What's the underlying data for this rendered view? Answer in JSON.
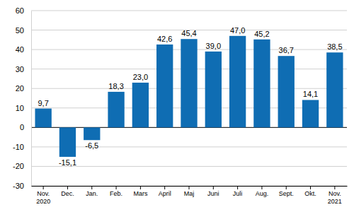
{
  "chart_data": {
    "type": "bar",
    "categories": [
      "Nov.\n2020",
      "Dec.",
      "Jan.",
      "Feb.",
      "Mars",
      "April",
      "Maj",
      "Juni",
      "Juli",
      "Aug.",
      "Sept.",
      "Okt.",
      "Nov.\n2021"
    ],
    "values": [
      9.7,
      -15.1,
      -6.5,
      18.3,
      23.0,
      42.6,
      45.4,
      39.0,
      47.0,
      45.2,
      36.7,
      14.1,
      38.5
    ],
    "value_labels": [
      "9,7",
      "-15,1",
      "-6,5",
      "18,3",
      "23,0",
      "42,6",
      "45,4",
      "39,0",
      "47,0",
      "45,2",
      "36,7",
      "14,1",
      "38,5"
    ],
    "color": "#0f6db3",
    "ylim": [
      -30,
      60
    ],
    "yticks": [
      -30,
      -20,
      -10,
      0,
      10,
      20,
      30,
      40,
      50,
      60
    ],
    "grid": true,
    "data_labels": true
  }
}
